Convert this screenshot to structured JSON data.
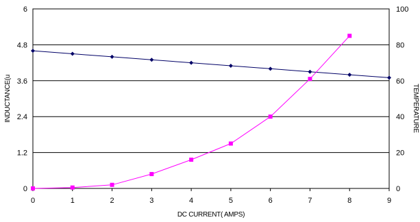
{
  "chart_data": {
    "type": "line",
    "xlabel": "DC CURRENT( AMPS)",
    "ylabel_left": "INDUCTANCE(u",
    "ylabel_right": "TEMPERATURE",
    "xlim": [
      0,
      9
    ],
    "ylim_left": [
      0,
      6
    ],
    "ylim_right": [
      0,
      100
    ],
    "x_ticks": [
      "0",
      "1",
      "2",
      "3",
      "4",
      "5",
      "6",
      "7",
      "8",
      "9"
    ],
    "y_left_ticks": [
      "0",
      "1.2",
      "2.4",
      "3.6",
      "4.8",
      "6"
    ],
    "y_right_ticks": [
      "0",
      "20",
      "40",
      "60",
      "80",
      "100"
    ],
    "grid": "horizontal",
    "series": [
      {
        "axis": "left",
        "color": "#000066",
        "marker": "diamond",
        "x": [
          0,
          1,
          2,
          3,
          4,
          5,
          6,
          7,
          8,
          9
        ],
        "values": [
          4.6,
          4.5,
          4.4,
          4.3,
          4.2,
          4.1,
          4.0,
          3.9,
          3.8,
          3.7
        ]
      },
      {
        "axis": "right",
        "color": "#ff00ff",
        "marker": "square",
        "x": [
          0,
          1,
          2,
          3,
          4,
          5,
          6,
          7,
          8
        ],
        "values": [
          0,
          0.5,
          2,
          8,
          16,
          25,
          40,
          61,
          85
        ]
      }
    ]
  }
}
